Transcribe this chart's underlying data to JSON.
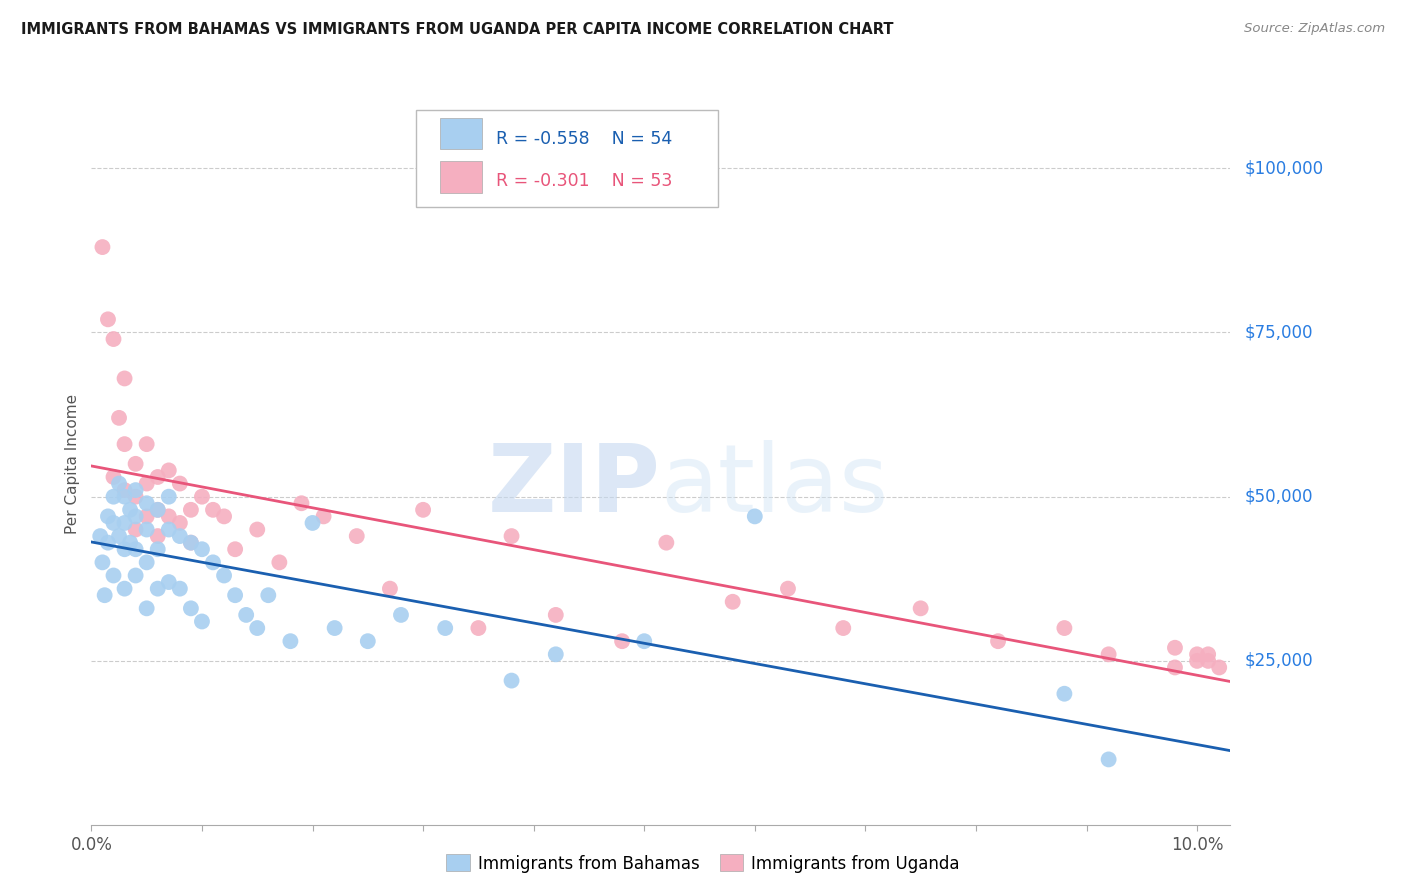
{
  "title": "IMMIGRANTS FROM BAHAMAS VS IMMIGRANTS FROM UGANDA PER CAPITA INCOME CORRELATION CHART",
  "source": "Source: ZipAtlas.com",
  "ylabel": "Per Capita Income",
  "xlabel_ticks": [
    "0.0%",
    "",
    "",
    "",
    "",
    "",
    "",
    "",
    "",
    "",
    "10.0%"
  ],
  "xlabel_vals": [
    0.0,
    0.01,
    0.02,
    0.03,
    0.04,
    0.05,
    0.06,
    0.07,
    0.08,
    0.09,
    0.1
  ],
  "ytick_labels": [
    "$25,000",
    "$50,000",
    "$75,000",
    "$100,000"
  ],
  "ytick_vals": [
    25000,
    50000,
    75000,
    100000
  ],
  "xlim": [
    0.0,
    0.103
  ],
  "ylim": [
    0,
    110000
  ],
  "bahamas_color": "#a8cff0",
  "uganda_color": "#f5afc0",
  "bahamas_line_color": "#1a5fb0",
  "uganda_line_color": "#e8557a",
  "legend_R_bahamas": "R = -0.558",
  "legend_N_bahamas": "N = 54",
  "legend_R_uganda": "R = -0.301",
  "legend_N_uganda": "N = 53",
  "watermark_zip": "ZIP",
  "watermark_atlas": "atlas",
  "background_color": "#ffffff",
  "grid_color": "#cccccc",
  "right_yaxis_color": "#2a7de1",
  "bahamas_x": [
    0.0008,
    0.001,
    0.0012,
    0.0015,
    0.0015,
    0.002,
    0.002,
    0.002,
    0.0025,
    0.0025,
    0.003,
    0.003,
    0.003,
    0.003,
    0.0035,
    0.0035,
    0.004,
    0.004,
    0.004,
    0.004,
    0.005,
    0.005,
    0.005,
    0.005,
    0.006,
    0.006,
    0.006,
    0.007,
    0.007,
    0.007,
    0.008,
    0.008,
    0.009,
    0.009,
    0.01,
    0.01,
    0.011,
    0.012,
    0.013,
    0.014,
    0.015,
    0.016,
    0.018,
    0.02,
    0.022,
    0.025,
    0.028,
    0.032,
    0.038,
    0.042,
    0.05,
    0.06,
    0.088,
    0.092
  ],
  "bahamas_y": [
    44000,
    40000,
    35000,
    47000,
    43000,
    50000,
    46000,
    38000,
    52000,
    44000,
    50000,
    46000,
    42000,
    36000,
    48000,
    43000,
    51000,
    47000,
    42000,
    38000,
    49000,
    45000,
    40000,
    33000,
    48000,
    42000,
    36000,
    50000,
    45000,
    37000,
    44000,
    36000,
    43000,
    33000,
    42000,
    31000,
    40000,
    38000,
    35000,
    32000,
    30000,
    35000,
    28000,
    46000,
    30000,
    28000,
    32000,
    30000,
    22000,
    26000,
    28000,
    47000,
    20000,
    10000
  ],
  "uganda_x": [
    0.001,
    0.0015,
    0.002,
    0.002,
    0.0025,
    0.003,
    0.003,
    0.003,
    0.004,
    0.004,
    0.004,
    0.005,
    0.005,
    0.005,
    0.006,
    0.006,
    0.006,
    0.007,
    0.007,
    0.008,
    0.008,
    0.009,
    0.009,
    0.01,
    0.011,
    0.012,
    0.013,
    0.015,
    0.017,
    0.019,
    0.021,
    0.024,
    0.027,
    0.03,
    0.035,
    0.038,
    0.042,
    0.048,
    0.052,
    0.058,
    0.063,
    0.068,
    0.075,
    0.082,
    0.088,
    0.092,
    0.098,
    0.098,
    0.1,
    0.1,
    0.101,
    0.101,
    0.102
  ],
  "uganda_y": [
    88000,
    77000,
    74000,
    53000,
    62000,
    68000,
    58000,
    51000,
    55000,
    50000,
    45000,
    58000,
    52000,
    47000,
    53000,
    48000,
    44000,
    54000,
    47000,
    52000,
    46000,
    48000,
    43000,
    50000,
    48000,
    47000,
    42000,
    45000,
    40000,
    49000,
    47000,
    44000,
    36000,
    48000,
    30000,
    44000,
    32000,
    28000,
    43000,
    34000,
    36000,
    30000,
    33000,
    28000,
    30000,
    26000,
    27000,
    24000,
    26000,
    25000,
    26000,
    25000,
    24000
  ]
}
